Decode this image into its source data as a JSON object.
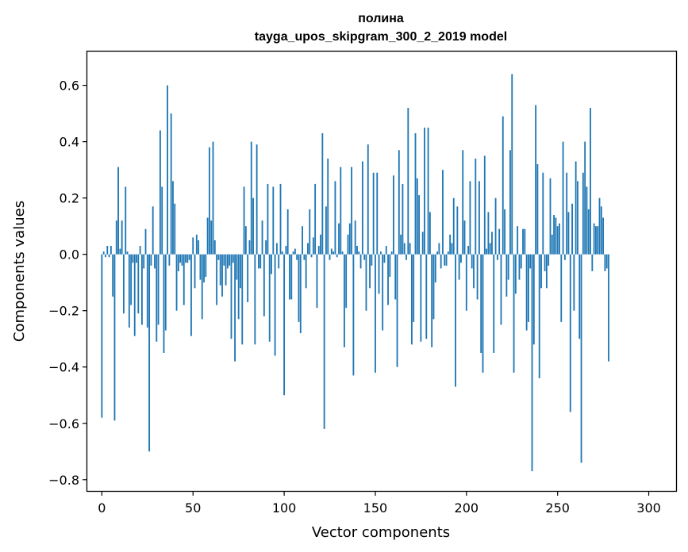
{
  "chart_data": {
    "type": "bar",
    "title": "полина",
    "subtitle": "tayga_upos_skipgram_300_2_2019 model",
    "xlabel": "Vector components",
    "ylabel": "Components values",
    "xlim": [
      -8,
      315
    ],
    "ylim": [
      -0.84,
      0.72
    ],
    "xticks": [
      0,
      50,
      100,
      150,
      200,
      250,
      300
    ],
    "xtick_labels": [
      "0",
      "50",
      "100",
      "150",
      "200",
      "250",
      "300"
    ],
    "yticks": [
      -0.8,
      -0.6,
      -0.4,
      -0.2,
      0.0,
      0.2,
      0.4,
      0.6
    ],
    "ytick_labels": [
      "−0.8",
      "−0.6",
      "−0.4",
      "−0.2",
      "0.0",
      "0.2",
      "0.4",
      "0.6"
    ],
    "grid": false,
    "color": "#1f77b4",
    "x_start": 0,
    "values": [
      -0.58,
      0.01,
      -0.01,
      0.03,
      -0.01,
      0.03,
      -0.15,
      -0.59,
      0.12,
      0.31,
      0.02,
      0.12,
      -0.21,
      0.24,
      0.01,
      -0.26,
      -0.18,
      -0.03,
      -0.29,
      -0.03,
      -0.21,
      0.03,
      -0.25,
      -0.05,
      0.09,
      -0.26,
      -0.7,
      -0.04,
      0.17,
      -0.05,
      -0.31,
      -0.25,
      0.44,
      0.24,
      -0.35,
      -0.27,
      0.6,
      -0.04,
      0.5,
      0.26,
      0.18,
      -0.2,
      -0.06,
      -0.03,
      -0.04,
      -0.18,
      -0.03,
      -0.03,
      -0.02,
      -0.29,
      0.06,
      -0.12,
      0.07,
      0.05,
      -0.09,
      -0.23,
      -0.1,
      -0.08,
      0.13,
      0.38,
      0.12,
      0.4,
      0.05,
      -0.18,
      -0.02,
      -0.11,
      -0.15,
      -0.04,
      -0.11,
      -0.05,
      -0.04,
      -0.3,
      -0.03,
      -0.38,
      -0.09,
      -0.23,
      -0.12,
      -0.32,
      0.24,
      0.1,
      -0.17,
      0.05,
      0.4,
      0.2,
      -0.32,
      0.39,
      -0.05,
      -0.05,
      0.12,
      -0.22,
      0.05,
      0.25,
      -0.31,
      -0.07,
      0.24,
      -0.36,
      0.04,
      -0.05,
      0.25,
      0.01,
      -0.5,
      0.03,
      0.16,
      -0.16,
      -0.16,
      0.01,
      0.02,
      -0.02,
      -0.24,
      -0.28,
      0.1,
      -0.02,
      -0.12,
      0.04,
      0.16,
      -0.01,
      0.06,
      0.25,
      -0.19,
      0.03,
      0.07,
      0.43,
      -0.62,
      0.17,
      0.34,
      -0.02,
      0.02,
      0.01,
      0.26,
      -0.01,
      0.11,
      0.31,
      0.01,
      -0.33,
      -0.19,
      0.07,
      0.11,
      0.31,
      -0.43,
      0.12,
      0.03,
      0.01,
      -0.05,
      0.33,
      -0.02,
      -0.2,
      0.39,
      -0.12,
      -0.04,
      0.29,
      -0.42,
      0.29,
      -0.14,
      0.01,
      -0.27,
      -0.03,
      0.03,
      -0.18,
      -0.08,
      0.01,
      0.28,
      -0.16,
      -0.4,
      0.37,
      0.07,
      0.25,
      0.04,
      -0.02,
      0.52,
      0.04,
      -0.32,
      -0.24,
      0.43,
      0.27,
      0.21,
      -0.31,
      0.08,
      0.45,
      -0.3,
      0.45,
      0.15,
      -0.33,
      -0.23,
      -0.1,
      0.01,
      0.04,
      -0.05,
      0.3,
      -0.04,
      -0.04,
      0.01,
      0.07,
      0.04,
      0.2,
      -0.47,
      0.17,
      -0.09,
      -0.03,
      0.37,
      0.12,
      -0.2,
      0.03,
      0.26,
      -0.05,
      -0.12,
      0.34,
      -0.16,
      0.26,
      -0.35,
      -0.42,
      0.35,
      0.02,
      0.15,
      0.04,
      0.08,
      -0.35,
      0.2,
      -0.02,
      0.09,
      -0.25,
      0.49,
      0.16,
      -0.15,
      -0.09,
      0.37,
      0.64,
      -0.42,
      -0.14,
      0.1,
      -0.09,
      -0.05,
      0.09,
      0.09,
      -0.27,
      -0.24,
      -0.05,
      -0.77,
      -0.32,
      0.53,
      0.32,
      -0.44,
      -0.12,
      0.29,
      -0.06,
      -0.12,
      -0.04,
      0.27,
      0.07,
      0.14,
      0.13,
      0.1,
      0.11,
      -0.24,
      0.4,
      -0.02,
      0.29,
      0.15,
      -0.56,
      0.18,
      -0.2,
      0.33,
      0.26,
      -0.3,
      -0.74,
      0.29,
      0.4,
      0.24,
      0.16,
      0.52,
      -0.06,
      0.11,
      0.1,
      0.1,
      0.2,
      0.17,
      0.13,
      -0.06,
      -0.05,
      -0.38
    ]
  }
}
